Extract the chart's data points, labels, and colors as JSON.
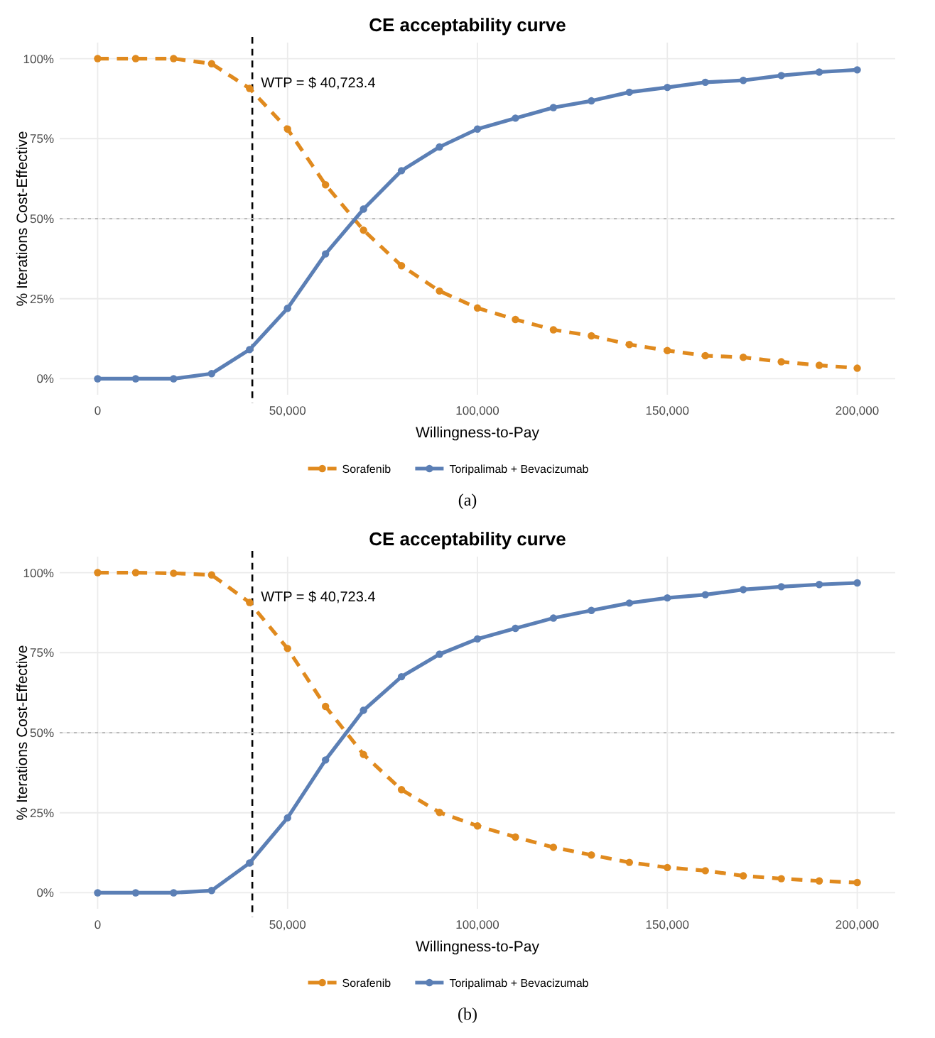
{
  "chart_data": [
    {
      "type": "line",
      "title": "CE acceptability curve",
      "xlabel": "Willingness-to-Pay",
      "ylabel": "% Iterations Cost-Effective",
      "annotations": [
        "(a)"
      ],
      "x": [
        0,
        10000,
        20000,
        30000,
        40000,
        50000,
        60000,
        70000,
        80000,
        90000,
        100000,
        110000,
        120000,
        130000,
        140000,
        150000,
        160000,
        170000,
        180000,
        190000,
        200000
      ],
      "series": [
        {
          "name": "Sorafenib",
          "color": "#e08a1e",
          "line_style": "dashed",
          "values": [
            100,
            100,
            100,
            98.4,
            90.7,
            78,
            60.6,
            46.4,
            35.3,
            27.4,
            22.1,
            18.5,
            15.3,
            13.4,
            10.7,
            8.8,
            7.2,
            6.7,
            5.3,
            4.2,
            3.3
          ]
        },
        {
          "name": "Toripalimab + Bevacizumab",
          "color": "#5b7fb5",
          "line_style": "solid",
          "values": [
            0,
            0,
            0,
            1.6,
            9.1,
            22,
            39,
            53,
            65,
            72.4,
            78,
            81.4,
            84.7,
            86.8,
            89.5,
            91,
            92.6,
            93.2,
            94.7,
            95.8,
            96.5
          ]
        }
      ],
      "xlim": [
        -10000,
        210000
      ],
      "xticks": [
        {
          "value": 0,
          "label": "0"
        },
        {
          "value": 50000,
          "label": "50,000"
        },
        {
          "value": 100000,
          "label": "100,000"
        },
        {
          "value": 150000,
          "label": "150,000"
        },
        {
          "value": 200000,
          "label": "200,000"
        }
      ],
      "ylim": [
        -5,
        105
      ],
      "yticks": [
        {
          "value": 0,
          "label": "0%"
        },
        {
          "value": 25,
          "label": "25%"
        },
        {
          "value": 50,
          "label": "50%"
        },
        {
          "value": 75,
          "label": "75%"
        },
        {
          "value": 100,
          "label": "100%"
        }
      ],
      "ref_lines": [
        {
          "axis": "x",
          "value": 40723.4,
          "label": "WTP = $ 40,723.4",
          "color": "#000000",
          "line_style": "dashed"
        },
        {
          "axis": "y",
          "value": 50,
          "label": null,
          "color": "#bbbbbb",
          "line_style": "dotted"
        }
      ],
      "grid": true,
      "legend": "bottom",
      "marker": "circle"
    },
    {
      "type": "line",
      "title": "CE acceptability curve",
      "xlabel": "Willingness-to-Pay",
      "ylabel": "% Iterations Cost-Effective",
      "annotations": [
        "(b)"
      ],
      "x": [
        0,
        10000,
        20000,
        30000,
        40000,
        50000,
        60000,
        70000,
        80000,
        90000,
        100000,
        110000,
        120000,
        130000,
        140000,
        150000,
        160000,
        170000,
        180000,
        190000,
        200000
      ],
      "series": [
        {
          "name": "Sorafenib",
          "color": "#e08a1e",
          "line_style": "dashed",
          "values": [
            100,
            100,
            99.8,
            99.3,
            90.7,
            76.3,
            58.2,
            43.2,
            32.2,
            25.1,
            20.9,
            17.4,
            14.2,
            11.8,
            9.5,
            7.9,
            6.9,
            5.3,
            4.4,
            3.7,
            3.2
          ]
        },
        {
          "name": "Toripalimab + Bevacizumab",
          "color": "#5b7fb5",
          "line_style": "solid",
          "values": [
            0,
            0,
            0,
            0.7,
            9.3,
            23.4,
            41.5,
            57,
            67.5,
            74.5,
            79.3,
            82.6,
            85.8,
            88.2,
            90.5,
            92.1,
            93.1,
            94.7,
            95.6,
            96.3,
            96.8
          ]
        }
      ],
      "xlim": [
        -10000,
        210000
      ],
      "xticks": [
        {
          "value": 0,
          "label": "0"
        },
        {
          "value": 50000,
          "label": "50,000"
        },
        {
          "value": 100000,
          "label": "100,000"
        },
        {
          "value": 150000,
          "label": "150,000"
        },
        {
          "value": 200000,
          "label": "200,000"
        }
      ],
      "ylim": [
        -5,
        105
      ],
      "yticks": [
        {
          "value": 0,
          "label": "0%"
        },
        {
          "value": 25,
          "label": "25%"
        },
        {
          "value": 50,
          "label": "50%"
        },
        {
          "value": 75,
          "label": "75%"
        },
        {
          "value": 100,
          "label": "100%"
        }
      ],
      "ref_lines": [
        {
          "axis": "x",
          "value": 40723.4,
          "label": "WTP = $ 40,723.4",
          "color": "#000000",
          "line_style": "dashed"
        },
        {
          "axis": "y",
          "value": 50,
          "label": null,
          "color": "#bbbbbb",
          "line_style": "dotted"
        }
      ],
      "grid": true,
      "legend": "bottom",
      "marker": "circle"
    }
  ]
}
